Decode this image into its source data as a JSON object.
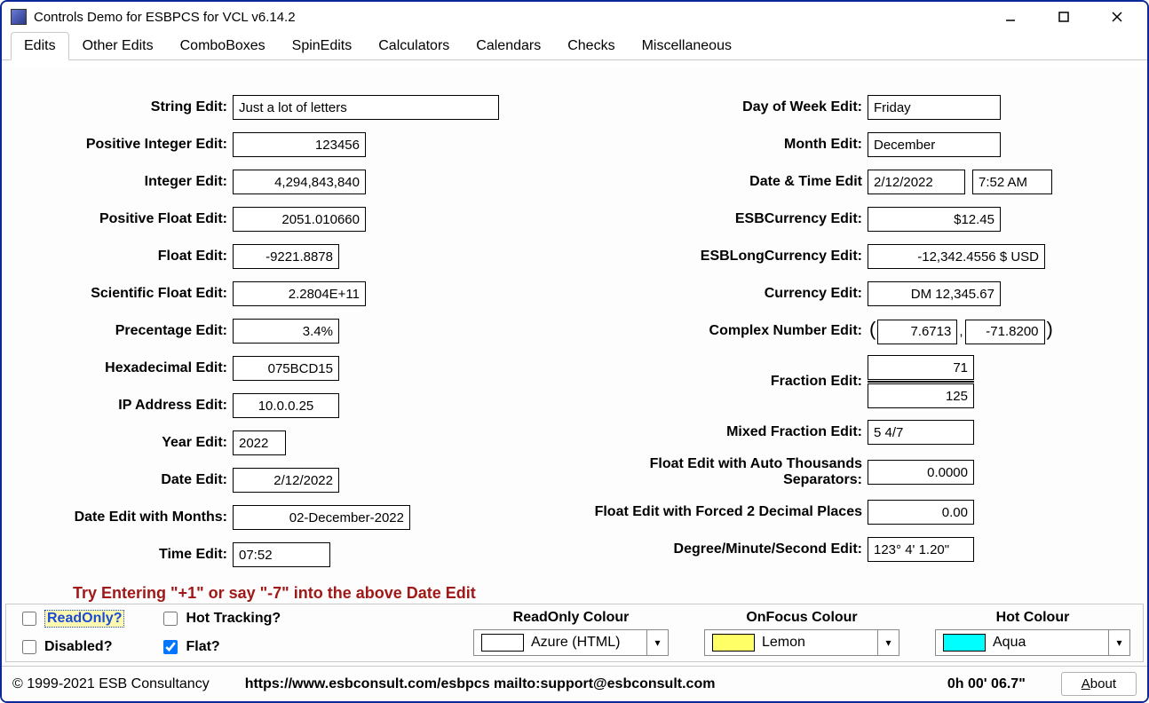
{
  "window": {
    "title": "Controls Demo for ESBPCS for VCL v6.14.2"
  },
  "tabs": [
    "Edits",
    "Other Edits",
    "ComboBoxes",
    "SpinEdits",
    "Calculators",
    "Calendars",
    "Checks",
    "Miscellaneous"
  ],
  "active_tab": 0,
  "left_fields": {
    "string_edit": {
      "label": "String Edit:",
      "value": "Just a lot of letters",
      "align": "left",
      "width": "w300"
    },
    "pos_int_edit": {
      "label": "Positive Integer Edit:",
      "value": "123456",
      "align": "right",
      "width": "w150"
    },
    "integer_edit": {
      "label": "Integer Edit:",
      "value": "4,294,843,840",
      "align": "right",
      "width": "w150"
    },
    "pos_float_edit": {
      "label": "Positive Float Edit:",
      "value": "2051.010660",
      "align": "right",
      "width": "w150"
    },
    "float_edit": {
      "label": "Float Edit:",
      "value": "-9221.8878",
      "align": "right",
      "width": "w120"
    },
    "sci_float_edit": {
      "label": "Scientific Float Edit:",
      "value": "2.2804E+11",
      "align": "right",
      "width": "w150"
    },
    "percent_edit": {
      "label": "Precentage Edit:",
      "value": "3.4%",
      "align": "right",
      "width": "w120"
    },
    "hex_edit": {
      "label": "Hexadecimal Edit:",
      "value": "075BCD15",
      "align": "right",
      "width": "w120"
    },
    "ip_edit": {
      "label": "IP Address Edit:",
      "value": "10.0.0.25",
      "align": "center",
      "width": "w120"
    },
    "year_edit": {
      "label": "Year Edit:",
      "value": "2022",
      "align": "left",
      "width": "w60"
    },
    "date_edit": {
      "label": "Date Edit:",
      "value": "2/12/2022",
      "align": "right",
      "width": "w120"
    },
    "date_months_edit": {
      "label": "Date Edit with Months:",
      "value": "02-December-2022",
      "align": "right",
      "width": "w200"
    },
    "time_edit": {
      "label": "Time Edit:",
      "value": "07:52",
      "align": "left",
      "width": "w110"
    }
  },
  "right_fields": {
    "dow_edit": {
      "label": "Day of Week Edit:",
      "value": "Friday",
      "align": "left",
      "width": "w150"
    },
    "month_edit": {
      "label": "Month Edit:",
      "value": "December",
      "align": "left",
      "width": "w150"
    },
    "datetime_edit": {
      "label": "Date & Time Edit",
      "date": "2/12/2022",
      "time": "7:52 AM"
    },
    "esb_currency": {
      "label": "ESBCurrency Edit:",
      "value": "$12.45",
      "align": "right",
      "width": "w150"
    },
    "esb_long_currency": {
      "label": "ESBLongCurrency Edit:",
      "value": "-12,342.4556 $ USD",
      "align": "right",
      "width": "w200"
    },
    "currency_edit": {
      "label": "Currency Edit:",
      "value": "DM 12,345.67",
      "align": "right",
      "width": "w150"
    },
    "complex_edit": {
      "label": "Complex Number Edit:",
      "real": "7.6713",
      "imag": "-71.8200"
    },
    "fraction_edit": {
      "label": "Fraction Edit:",
      "num": "71",
      "den": "125"
    },
    "mixed_fraction": {
      "label": "Mixed Fraction Edit:",
      "value": "5 4/7",
      "align": "left",
      "width": "w120"
    },
    "float_thousands": {
      "label": "Float Edit with Auto Thousands Separators:",
      "value": "0.0000",
      "align": "right",
      "width": "w120"
    },
    "float_2dp": {
      "label": "Float Edit with Forced 2 Decimal Places",
      "value": "0.00",
      "align": "right",
      "width": "w120"
    },
    "dms_edit": {
      "label": "Degree/Minute/Second Edit:",
      "value": "123° 4' 1.20\"",
      "align": "left",
      "width": "w120"
    }
  },
  "hint": "Try Entering  \"+1\" or say \"-7\" into the above Date Edit",
  "bottom": {
    "readonly": {
      "label": "ReadOnly?",
      "checked": false
    },
    "disabled": {
      "label": "Disabled?",
      "checked": false
    },
    "hottracking": {
      "label": "Hot Tracking?",
      "checked": false
    },
    "flat": {
      "label": "Flat?",
      "checked": true
    },
    "readonly_colour": {
      "title": "ReadOnly Colour",
      "swatch": "#ffffff",
      "name": "Azure (HTML)"
    },
    "onfocus_colour": {
      "title": "OnFocus Colour",
      "swatch": "#ffff66",
      "name": "Lemon"
    },
    "hot_colour": {
      "title": "Hot Colour",
      "swatch": "#00ffff",
      "name": "Aqua"
    }
  },
  "status": {
    "copyright": "© 1999-2021 ESB Consultancy",
    "links": "https://www.esbconsult.com/esbpcs  mailto:support@esbconsult.com",
    "elapsed": "0h 00' 06.7\"",
    "about": "About"
  }
}
